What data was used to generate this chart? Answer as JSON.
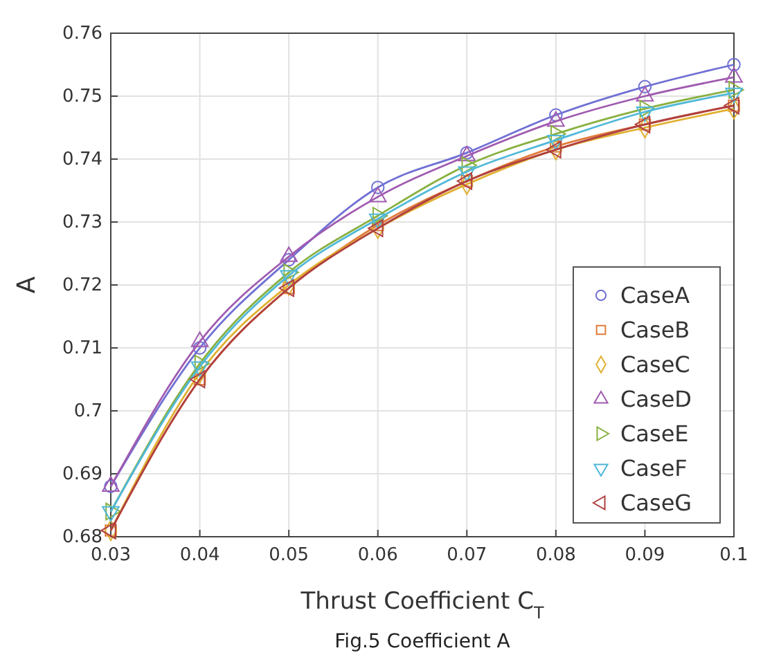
{
  "chart_data": {
    "type": "line",
    "xlabel": "Thrust Coefficient C$_{T}$",
    "ylabel": "A",
    "x": [
      0.03,
      0.04,
      0.05,
      0.06,
      0.07,
      0.08,
      0.09,
      0.1
    ],
    "series": [
      {
        "name": "CaseA",
        "color": "#7070d4",
        "marker": "circle",
        "values": [
          0.688,
          0.71,
          0.724,
          0.7355,
          0.741,
          0.747,
          0.7515,
          0.755
        ]
      },
      {
        "name": "CaseB",
        "color": "#e07b3a",
        "marker": "square",
        "values": [
          0.681,
          0.705,
          0.7195,
          0.7295,
          0.7365,
          0.742,
          0.7455,
          0.7485
        ]
      },
      {
        "name": "CaseC",
        "color": "#e0b030",
        "marker": "diamond",
        "values": [
          0.681,
          0.706,
          0.72,
          0.729,
          0.736,
          0.7415,
          0.745,
          0.748
        ]
      },
      {
        "name": "CaseD",
        "color": "#a05ab0",
        "marker": "triangle",
        "values": [
          0.688,
          0.711,
          0.7245,
          0.734,
          0.7405,
          0.746,
          0.75,
          0.753
        ]
      },
      {
        "name": "CaseE",
        "color": "#88b040",
        "marker": "triangle-right",
        "values": [
          0.684,
          0.7075,
          0.722,
          0.731,
          0.739,
          0.744,
          0.748,
          0.751
        ]
      },
      {
        "name": "CaseF",
        "color": "#50b8d8",
        "marker": "triangle-down",
        "values": [
          0.684,
          0.707,
          0.7215,
          0.7305,
          0.738,
          0.743,
          0.7475,
          0.7505
        ]
      },
      {
        "name": "CaseG",
        "color": "#b04040",
        "marker": "triangle-left",
        "values": [
          0.681,
          0.705,
          0.7195,
          0.729,
          0.7365,
          0.7415,
          0.7455,
          0.7485
        ]
      }
    ],
    "xlim": [
      0.03,
      0.1
    ],
    "xticks": [
      0.03,
      0.04,
      0.05,
      0.06,
      0.07,
      0.08,
      0.09,
      0.1
    ],
    "ylim": [
      0.68,
      0.76
    ],
    "yticks": [
      0.68,
      0.69,
      0.7,
      0.71,
      0.72,
      0.73,
      0.74,
      0.75,
      0.76
    ],
    "grid": true,
    "legend": "bottom right",
    "line_style": "solid",
    "annotations": [
      "Fig.5   Coefficient A"
    ]
  }
}
